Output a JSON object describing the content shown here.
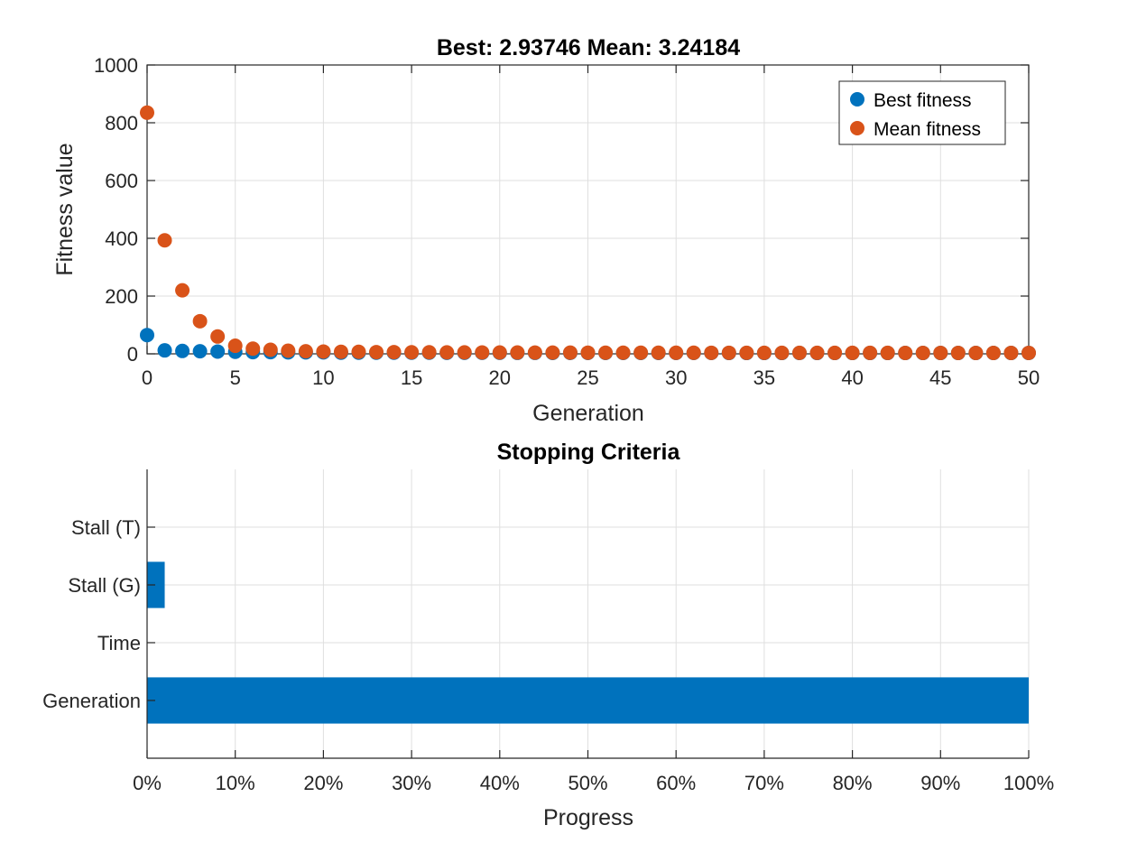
{
  "colors": {
    "best": "#0072BD",
    "mean": "#D95319",
    "bar": "#0072BD",
    "axis": "#262626",
    "grid": "#dfdfdf"
  },
  "chart_data": [
    {
      "type": "scatter",
      "title": "Best: 2.93746 Mean: 3.24184",
      "xlabel": "Generation",
      "ylabel": "Fitness value",
      "xlim": [
        0,
        50
      ],
      "ylim": [
        0,
        1000
      ],
      "xticks": [
        "0",
        "5",
        "10",
        "15",
        "20",
        "25",
        "30",
        "35",
        "40",
        "45",
        "50"
      ],
      "yticks": [
        "0",
        "200",
        "400",
        "600",
        "800",
        "1000"
      ],
      "grid": true,
      "legend": "top-right",
      "series": [
        {
          "name": "Best fitness",
          "color": "#0072BD",
          "x": [
            0,
            1,
            2,
            3,
            4,
            5,
            6,
            7,
            8,
            9,
            10,
            11,
            12,
            13,
            14,
            15,
            16,
            17,
            18,
            19,
            20,
            21,
            22,
            23,
            24,
            25,
            26,
            27,
            28,
            29,
            30,
            31,
            32,
            33,
            34,
            35,
            36,
            37,
            38,
            39,
            40,
            41,
            42,
            43,
            44,
            45,
            46,
            47,
            48,
            49,
            50
          ],
          "y": [
            65,
            12,
            10,
            9,
            8,
            7,
            6,
            6,
            5,
            5,
            5,
            4,
            4,
            4,
            4,
            4,
            4,
            3.5,
            3.5,
            3.5,
            3.5,
            3.4,
            3.4,
            3.3,
            3.3,
            3.3,
            3.2,
            3.2,
            3.2,
            3.1,
            3.1,
            3.1,
            3.1,
            3.0,
            3.0,
            3.0,
            3.0,
            3.0,
            3.0,
            3.0,
            2.99,
            2.98,
            2.97,
            2.96,
            2.96,
            2.95,
            2.95,
            2.94,
            2.94,
            2.94,
            2.94
          ]
        },
        {
          "name": "Mean fitness",
          "color": "#D95319",
          "x": [
            0,
            1,
            2,
            3,
            4,
            5,
            6,
            7,
            8,
            9,
            10,
            11,
            12,
            13,
            14,
            15,
            16,
            17,
            18,
            19,
            20,
            21,
            22,
            23,
            24,
            25,
            26,
            27,
            28,
            29,
            30,
            31,
            32,
            33,
            34,
            35,
            36,
            37,
            38,
            39,
            40,
            41,
            42,
            43,
            44,
            45,
            46,
            47,
            48,
            49,
            50
          ],
          "y": [
            835,
            393,
            220,
            113,
            60,
            28,
            18,
            14,
            11,
            9,
            8,
            7,
            7,
            6,
            6,
            5.5,
            5.5,
            5,
            5,
            4.8,
            4.6,
            4.5,
            4.4,
            4.3,
            4.2,
            4.1,
            4,
            4,
            3.9,
            3.9,
            3.8,
            3.8,
            3.7,
            3.7,
            3.6,
            3.6,
            3.5,
            3.5,
            3.5,
            3.4,
            3.4,
            3.4,
            3.4,
            3.3,
            3.3,
            3.3,
            3.3,
            3.3,
            3.25,
            3.25,
            3.24
          ]
        }
      ]
    },
    {
      "type": "bar",
      "orientation": "horizontal",
      "title": "Stopping Criteria",
      "xlabel": "Progress",
      "ylabel": "",
      "xlim": [
        0,
        100
      ],
      "xticks": [
        "0%",
        "10%",
        "20%",
        "30%",
        "40%",
        "50%",
        "60%",
        "70%",
        "80%",
        "90%",
        "100%"
      ],
      "grid": true,
      "categories": [
        "Generation",
        "Time",
        "Stall (G)",
        "Stall (T)"
      ],
      "values": [
        100,
        0,
        2,
        0
      ]
    }
  ]
}
